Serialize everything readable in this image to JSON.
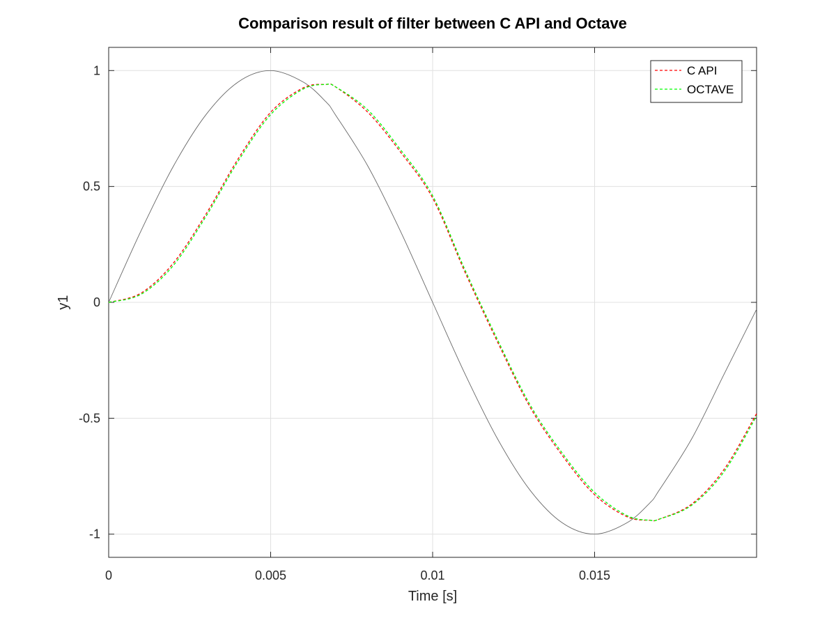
{
  "chart_data": {
    "type": "line",
    "title": "Comparison result of filter between C API and Octave",
    "xlabel": "Time [s]",
    "ylabel": "y1",
    "xlim": [
      0,
      0.02
    ],
    "ylim": [
      -1.1,
      1.1
    ],
    "x_ticks": [
      0,
      0.005,
      0.01,
      0.015
    ],
    "x_tick_labels": [
      "0",
      "0.005",
      "0.01",
      "0.015"
    ],
    "y_ticks": [
      -1,
      -0.5,
      0,
      0.5,
      1
    ],
    "y_tick_labels": [
      "-1",
      "-0.5",
      "0",
      "0.5",
      "1"
    ],
    "grid": true,
    "legend_position": "top-right",
    "x": [
      0,
      0.001,
      0.002,
      0.003,
      0.004,
      0.005,
      0.006,
      0.0067,
      0.007,
      0.008,
      0.009,
      0.01,
      0.011,
      0.012,
      0.013,
      0.014,
      0.015,
      0.016,
      0.0167,
      0.017,
      0.018,
      0.019,
      0.02
    ],
    "series": [
      {
        "style": "solid",
        "color": "#666666",
        "values": [
          0,
          0.309,
          0.588,
          0.809,
          0.951,
          1.0,
          0.951,
          0.866,
          0.809,
          0.588,
          0.309,
          0,
          -0.309,
          -0.588,
          -0.809,
          -0.951,
          -1.0,
          -0.951,
          -0.866,
          -0.809,
          -0.588,
          -0.309,
          -0.03
        ]
      },
      {
        "name": "C API",
        "style": "dashed",
        "color": "#ff0000",
        "values": [
          0,
          0.04,
          0.17,
          0.38,
          0.62,
          0.82,
          0.925,
          0.94,
          0.93,
          0.82,
          0.65,
          0.45,
          0.13,
          -0.17,
          -0.45,
          -0.66,
          -0.83,
          -0.925,
          -0.94,
          -0.935,
          -0.87,
          -0.72,
          -0.48
        ]
      },
      {
        "name": "OCTAVE",
        "style": "dashed",
        "color": "#00ff00",
        "values": [
          0,
          0.035,
          0.16,
          0.37,
          0.61,
          0.81,
          0.92,
          0.94,
          0.93,
          0.83,
          0.66,
          0.46,
          0.14,
          -0.16,
          -0.44,
          -0.65,
          -0.82,
          -0.92,
          -0.94,
          -0.935,
          -0.875,
          -0.73,
          -0.49
        ]
      }
    ]
  }
}
